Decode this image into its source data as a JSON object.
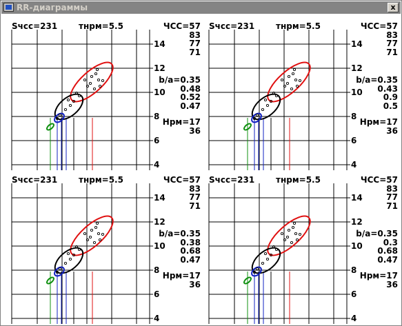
{
  "window": {
    "title": "RR-диаграммы",
    "close_label": "x"
  },
  "colors": {
    "red": "#e01010",
    "black": "#000000",
    "blue": "#1020c0",
    "green": "#109010",
    "grid": "#000000"
  },
  "axis_ticks": [
    "14",
    "12",
    "10",
    "8",
    "6",
    "4"
  ],
  "panels": [
    {
      "s_label": "Sчсс=231",
      "t_label": "тнрм=5.5",
      "hr_label": "ЧСС=57",
      "hr_values": [
        "83",
        "77",
        "71"
      ],
      "ba_label": "b/a=0.35",
      "ba_values": [
        "0.48",
        "0.52",
        "0.47"
      ],
      "n_label": "Hрм=17",
      "n_value": "36"
    },
    {
      "s_label": "Sчсс=231",
      "t_label": "тнрм=5.5",
      "hr_label": "ЧСС=57",
      "hr_values": [
        "83",
        "77",
        "71"
      ],
      "ba_label": "b/a=0.35",
      "ba_values": [
        "0.43",
        "0.9",
        "0.5"
      ],
      "n_label": "Hрм=17",
      "n_value": "36"
    },
    {
      "s_label": "Sчсс=231",
      "t_label": "тнрм=5.5",
      "hr_label": "ЧСС=57",
      "hr_values": [
        "83",
        "77",
        "71"
      ],
      "ba_label": "b/a=0.35",
      "ba_values": [
        "0.38",
        "0.68",
        "0.47"
      ],
      "n_label": "Hрм=17",
      "n_value": "36"
    },
    {
      "s_label": "Sчсс=231",
      "t_label": "тнрм=5.5",
      "hr_label": "ЧСС=57",
      "hr_values": [
        "83",
        "77",
        "71"
      ],
      "ba_label": "b/a=0.35",
      "ba_values": [
        "0.3",
        "0.68",
        "0.47"
      ],
      "n_label": "Hрм=17",
      "n_value": "36"
    }
  ]
}
